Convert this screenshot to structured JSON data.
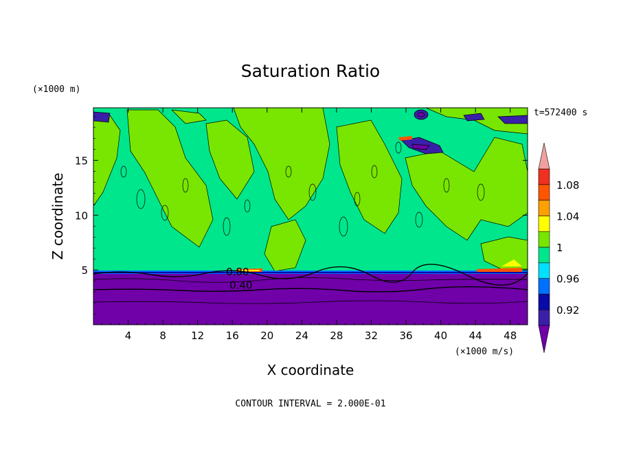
{
  "chart_data": {
    "type": "heatmap",
    "title": "Saturation Ratio",
    "xlabel": "X coordinate",
    "ylabel": "Z coordinate",
    "x_unit": "(×1000 m/s)",
    "y_unit": "(×1000 m)",
    "time_label": "t=572400 s",
    "footer": "CONTOUR INTERVAL = 2.000E-01",
    "xlim": [
      0,
      50
    ],
    "ylim": [
      0,
      19.8
    ],
    "x_ticks": [
      4,
      8,
      12,
      16,
      20,
      24,
      28,
      32,
      36,
      40,
      44,
      48
    ],
    "y_ticks": [
      5,
      10,
      15
    ],
    "contour_labels": [
      {
        "text": "0.80",
        "x": 16.6,
        "y": 4.5
      },
      {
        "text": "0.40",
        "x": 17.0,
        "y": 3.3
      }
    ],
    "colorbar": {
      "labels": [
        "1.08",
        "1.04",
        "1",
        "0.96",
        "0.92"
      ],
      "label_values": [
        1.08,
        1.04,
        1.0,
        0.96,
        0.92
      ],
      "levels": [
        0.9,
        0.92,
        0.94,
        0.96,
        0.98,
        1.0,
        1.02,
        1.04,
        1.06,
        1.08,
        1.1
      ],
      "colors": [
        "#3a1fa8",
        "#0a0aa8",
        "#0070ff",
        "#00e0ff",
        "#00e68c",
        "#78e600",
        "#ffff00",
        "#ffa000",
        "#ff5500",
        "#f03020"
      ],
      "under_color": "#7000a8",
      "over_color": "#f0a0a0"
    },
    "background_regions": {
      "boundary_layer": {
        "z_top": 4.8,
        "color": "#7000a8",
        "value_range": [
          0.0,
          0.9
        ]
      },
      "upper_field": {
        "z_bottom": 4.8,
        "colors": [
          "#00e68c",
          "#78e600"
        ],
        "value_range": [
          0.98,
          1.02
        ]
      }
    }
  }
}
